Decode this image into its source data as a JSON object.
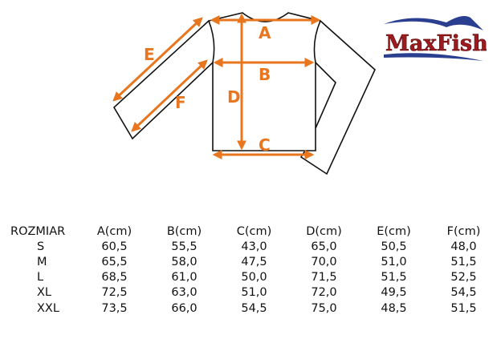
{
  "diagram": {
    "labels": {
      "A": "A",
      "B": "B",
      "C": "C",
      "D": "D",
      "E": "E",
      "F": "F"
    },
    "arrow_color": "#e8761e",
    "outline_color": "#111111"
  },
  "logo": {
    "text": "MaxFish",
    "text_color": "#9b1b1e",
    "wave_color": "#2a3f8f"
  },
  "table": {
    "headers": [
      "ROZMIAR",
      "A(cm)",
      "B(cm)",
      "C(cm)",
      "D(cm)",
      "E(cm)",
      "F(cm)"
    ],
    "rows": [
      [
        "S",
        "60,5",
        "55,5",
        "43,0",
        "65,0",
        "50,5",
        "48,0"
      ],
      [
        "M",
        "65,5",
        "58,0",
        "47,5",
        "70,0",
        "51,0",
        "51,5"
      ],
      [
        "L",
        "68,5",
        "61,0",
        "50,0",
        "71,5",
        "51,5",
        "52,5"
      ],
      [
        "XL",
        "72,5",
        "63,0",
        "51,0",
        "72,0",
        "49,5",
        "54,5"
      ],
      [
        "XXL",
        "73,5",
        "66,0",
        "54,5",
        "75,0",
        "48,5",
        "51,5"
      ]
    ]
  }
}
